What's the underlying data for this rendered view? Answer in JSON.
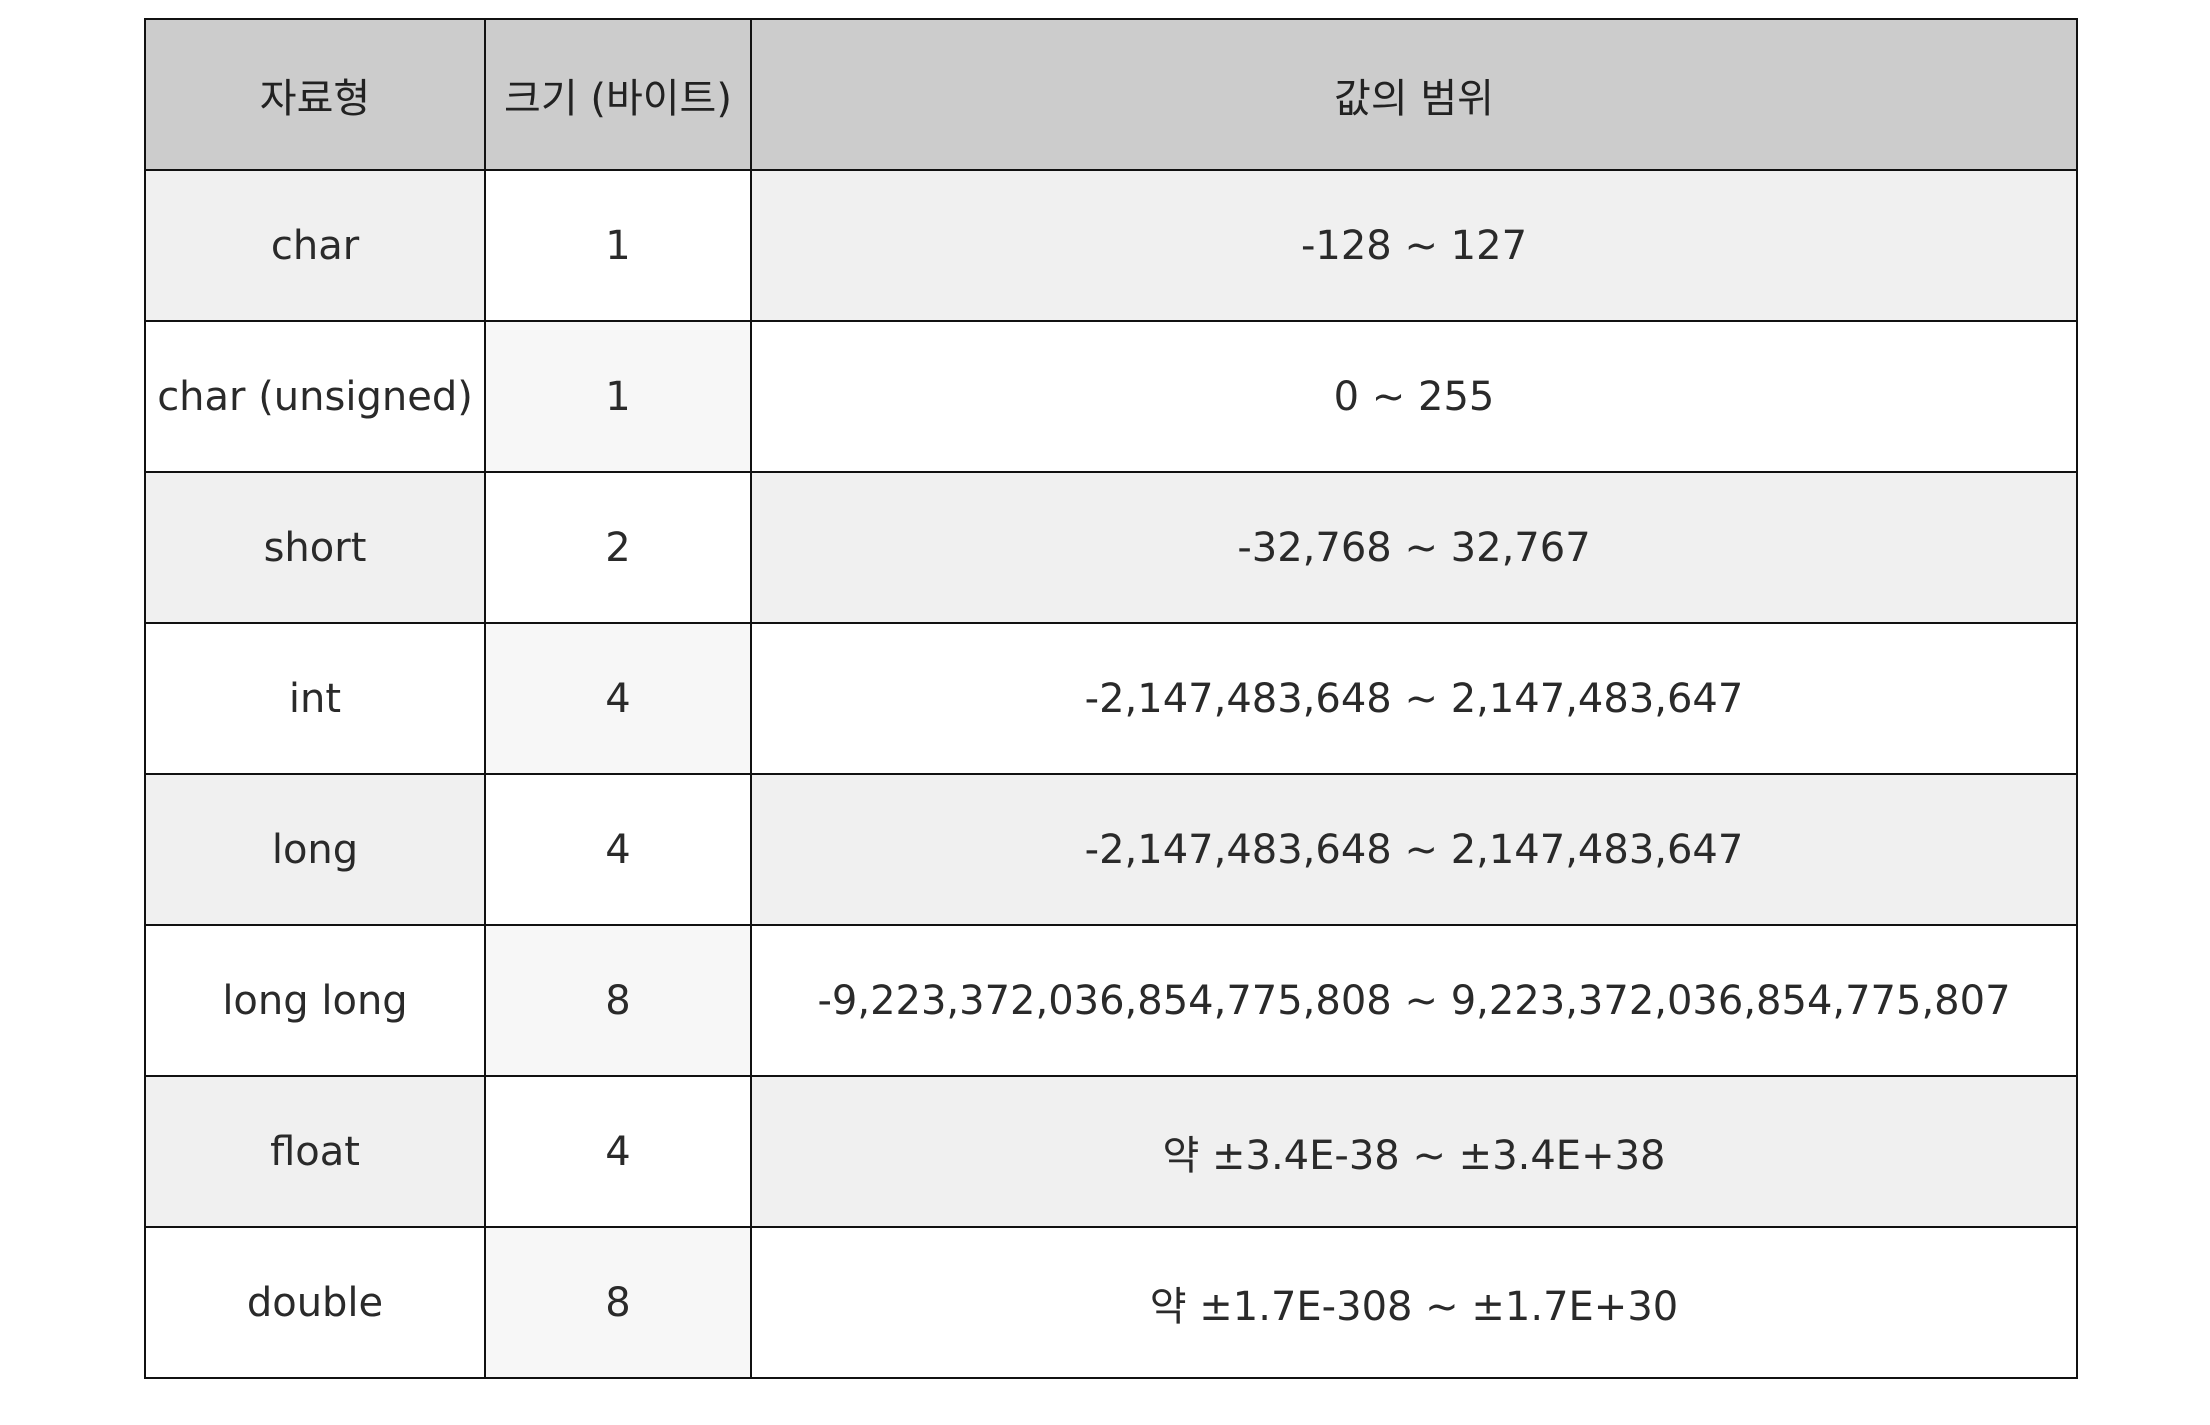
{
  "table": {
    "headers": {
      "type": "자료형",
      "size": "크기 (바이트)",
      "range": "값의 범위"
    },
    "rows": [
      {
        "type": "char",
        "size": "1",
        "range": "-128 ~ 127"
      },
      {
        "type": "char (unsigned)",
        "size": "1",
        "range": "0 ~ 255"
      },
      {
        "type": "short",
        "size": "2",
        "range": "-32,768 ~ 32,767"
      },
      {
        "type": "int",
        "size": "4",
        "range": "-2,147,483,648 ~ 2,147,483,647"
      },
      {
        "type": "long",
        "size": "4",
        "range": "-2,147,483,648 ~ 2,147,483,647"
      },
      {
        "type": "long long",
        "size": "8",
        "range": "-9,223,372,036,854,775,808 ~ 9,223,372,036,854,775,807"
      },
      {
        "type": "float",
        "size": "4",
        "range": "약 ±3.4E-38 ~ ±3.4E+38"
      },
      {
        "type": "double",
        "size": "8",
        "range": "약 ±1.7E-308 ~ ±1.7E+30"
      }
    ]
  },
  "colors": {
    "header_bg": "#cccccc",
    "row_shade": "#f0f0f0",
    "size_shade": "#f7f7f7",
    "border": "#111111",
    "text": "#2a2a2a"
  }
}
